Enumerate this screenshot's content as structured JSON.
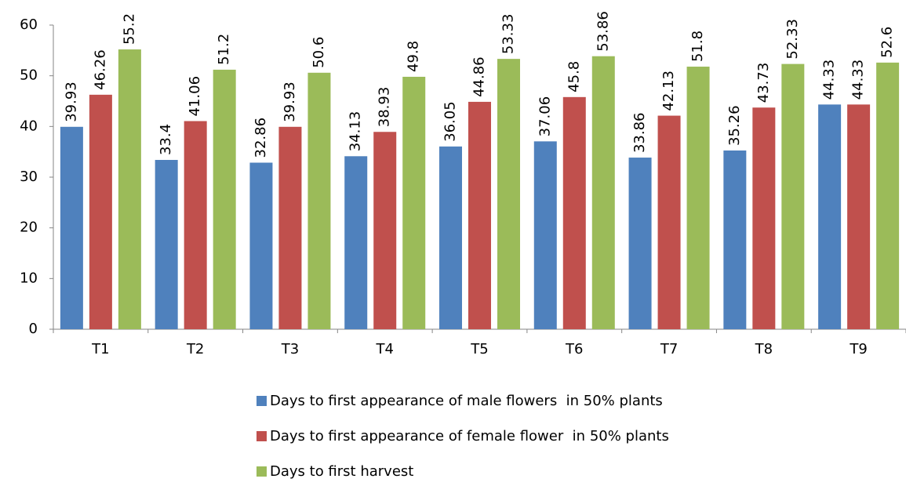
{
  "chart_data": {
    "type": "bar",
    "categories": [
      "T1",
      "T2",
      "T3",
      "T4",
      "T5",
      "T6",
      "T7",
      "T8",
      "T9"
    ],
    "series": [
      {
        "name": "Days to first appearance of male flowers  in 50% plants",
        "color": "#4f81bd",
        "values": [
          39.93,
          33.4,
          32.86,
          34.13,
          36.05,
          37.06,
          33.86,
          35.26,
          44.33
        ]
      },
      {
        "name": "Days to first appearance of female flower  in 50% plants",
        "color": "#c0504d",
        "values": [
          46.26,
          41.06,
          39.93,
          38.93,
          44.86,
          45.8,
          42.13,
          43.73,
          44.33
        ]
      },
      {
        "name": "Days to first harvest",
        "color": "#9bbb59",
        "values": [
          55.2,
          51.2,
          50.6,
          49.8,
          53.33,
          53.86,
          51.8,
          52.33,
          52.6
        ]
      }
    ],
    "ylim": [
      0,
      60
    ],
    "yticks": [
      0,
      10,
      20,
      30,
      40,
      50,
      60
    ],
    "grid": false,
    "legend": "bottom"
  }
}
